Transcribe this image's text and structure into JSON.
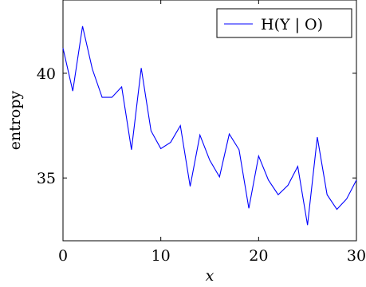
{
  "chart_data": {
    "type": "line",
    "title": "",
    "xlabel": "x",
    "ylabel": "entropy",
    "xlim": [
      0,
      30
    ],
    "ylim": [
      32,
      43.5
    ],
    "x_ticks": [
      0,
      10,
      20,
      30
    ],
    "y_ticks": [
      35,
      40
    ],
    "grid": false,
    "legend_position": "top-right",
    "series": [
      {
        "name": "H(Y | O)",
        "color": "#0000ff",
        "x": [
          0,
          1,
          2,
          3,
          4,
          5,
          6,
          7,
          8,
          9,
          10,
          11,
          12,
          13,
          14,
          15,
          16,
          17,
          18,
          19,
          20,
          21,
          22,
          23,
          24,
          25,
          26,
          27,
          28,
          29,
          30
        ],
        "values": [
          41.2,
          39.15,
          42.25,
          40.2,
          38.85,
          38.85,
          39.35,
          36.35,
          40.25,
          37.25,
          36.4,
          36.7,
          37.5,
          34.6,
          37.05,
          35.85,
          35.05,
          37.1,
          36.35,
          33.55,
          36.05,
          34.9,
          34.2,
          34.65,
          35.55,
          32.75,
          36.95,
          34.2,
          33.5,
          34.0,
          34.9
        ]
      }
    ]
  }
}
